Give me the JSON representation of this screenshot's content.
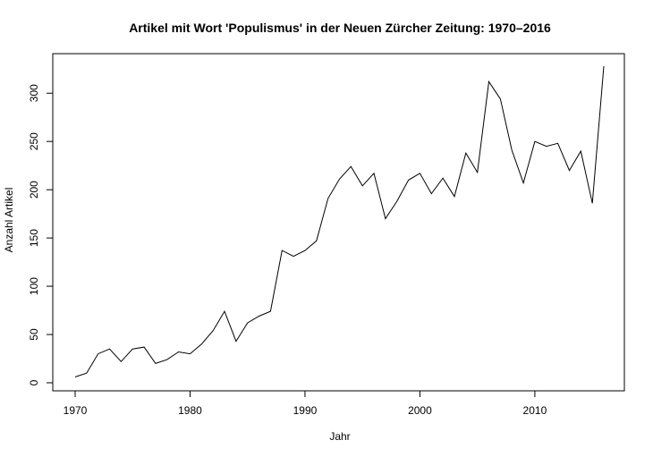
{
  "chart_data": {
    "type": "line",
    "title": "Artikel mit Wort 'Populismus' in der Neuen Zürcher Zeitung: 1970–2016",
    "xlabel": "Jahr",
    "ylabel": "Anzahl Artikel",
    "xlim": [
      1970,
      2016
    ],
    "ylim": [
      0,
      328
    ],
    "x_ticks": [
      1970,
      1980,
      1990,
      2000,
      2010
    ],
    "y_ticks": [
      0,
      50,
      100,
      150,
      200,
      250,
      300
    ],
    "x_tick_labels": [
      "1970",
      "1980",
      "1990",
      "2000",
      "2010"
    ],
    "y_tick_labels": [
      "0",
      "50",
      "100",
      "150",
      "200",
      "250",
      "300"
    ],
    "grid": false,
    "series": [
      {
        "x": [
          1970,
          1971,
          1972,
          1973,
          1974,
          1975,
          1976,
          1977,
          1978,
          1979,
          1980,
          1981,
          1982,
          1983,
          1984,
          1985,
          1986,
          1987,
          1988,
          1989,
          1990,
          1991,
          1992,
          1993,
          1994,
          1995,
          1996,
          1997,
          1998,
          1999,
          2000,
          2001,
          2002,
          2003,
          2004,
          2005,
          2006,
          2007,
          2008,
          2009,
          2010,
          2011,
          2012,
          2013,
          2014,
          2015,
          2016
        ],
        "values": [
          6,
          10,
          30,
          35,
          22,
          35,
          37,
          20,
          24,
          32,
          30,
          40,
          54,
          74,
          43,
          62,
          69,
          74,
          137,
          131,
          137,
          147,
          191,
          211,
          224,
          204,
          217,
          170,
          188,
          210,
          217,
          196,
          212,
          193,
          238,
          218,
          312,
          294,
          241,
          207,
          250,
          245,
          248,
          220,
          240,
          186,
          328
        ],
        "color": "#000000"
      }
    ]
  }
}
